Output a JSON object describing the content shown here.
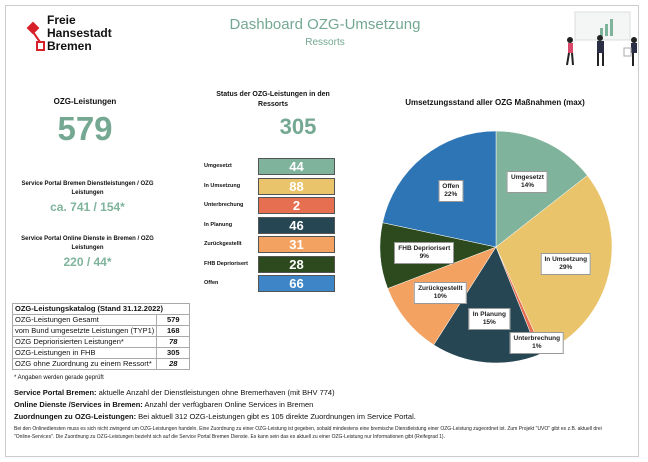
{
  "header": {
    "logo_lines": [
      "Freie",
      "Hansestadt",
      "Bremen"
    ],
    "title": "Dashboard OZG-Umsetzung",
    "subtitle": "Ressorts"
  },
  "left": {
    "ozg_title": "OZG-Leistungen",
    "ozg_value": "579",
    "sp_label": "Service Portal Bremen Dienstleistungen / OZG Leistungen",
    "sp_value": "ca. 741 / 154*",
    "od_label": "Service Portal Online Dienste in Bremen / OZG Leistungen",
    "od_value": "220 / 44*"
  },
  "status": {
    "title": "Status der OZG-Leistungen in den Ressorts",
    "total": "305",
    "items": [
      {
        "label": "Umgesetzt",
        "value": "44",
        "color": "#7fb39c"
      },
      {
        "label": "In Umsetzung",
        "value": "88",
        "color": "#e9c46a"
      },
      {
        "label": "Unterbrechung",
        "value": "2",
        "color": "#e76f51"
      },
      {
        "label": "In Planung",
        "value": "46",
        "color": "#264653"
      },
      {
        "label": "Zurückgestellt",
        "value": "31",
        "color": "#f4a261"
      },
      {
        "label": "FHB Depriorisert",
        "value": "28",
        "color": "#2d4a1e"
      },
      {
        "label": "Offen",
        "value": "66",
        "color": "#3d85c6"
      }
    ]
  },
  "catalog": {
    "title": "OZG-Leistungskatalog (Stand 31.12.2022)",
    "rows": [
      {
        "label": "OZG-Leistungen Gesamt",
        "value": "579"
      },
      {
        "label": "vom Bund umgesetzte Leistungen (TYP1)",
        "value": "168"
      },
      {
        "label": "OZG Depriorisierten Leistungen*",
        "value": "78"
      },
      {
        "label": "OZG-Leistungen in FHB",
        "value": "305"
      },
      {
        "label": "OZG ohne Zuordnung zu einem Ressort*",
        "value": "28"
      }
    ],
    "note": "* Angaben werden gerade geprüft"
  },
  "descriptions": [
    {
      "term": "Service Portal Bremen:",
      "text": " aktuelle Anzahl der Dienstleistungen ohne Bremerhaven (mit BHV 774)"
    },
    {
      "term": "Online Dienste /Services in Bremen:",
      "text": " Anzahl der verfügbaren Online Services in Bremen"
    },
    {
      "term": "Zuordnungen zu OZG-Leistungen:",
      "text": " Bei aktuell 312 OZG-Leistungen gibt es 105 direkte Zuordnungen im Service Portal."
    }
  ],
  "fine_print": "Bei den Onlinediensten muss es sich nicht zwingend um OZG-Leistungen handeln. Eine Zuordnung zu einer OZG-Leistung ist gegeben, sobald mindestens eine bremische Dienstleistung einer OZG-Leistung zugeordnet ist. Zum Projekt \"UVO\" gibt es z.B. aktuell drei \"Online-Services\". Die Zuordnung zu OZG-Leistungen bezieht sich auf die Service Portal Bremen Dienste. Es kann sein das es aktuell zu einer OZG-Leistung nur Informationen gibt (Reifegrad 1).",
  "chart_data": {
    "type": "pie",
    "title": "Umsetzungsstand aller OZG Maßnahmen (max)",
    "start": "12 o'clock, clockwise",
    "slices": [
      {
        "label": "Umgesetzt",
        "value": 44,
        "percent": "14%",
        "color": "#7fb39c"
      },
      {
        "label": "In Umsetzung",
        "value": 88,
        "percent": "29%",
        "color": "#e9c46a"
      },
      {
        "label": "Unterbrechung",
        "value": 2,
        "percent": "1%",
        "color": "#e76f51"
      },
      {
        "label": "In Planung",
        "value": 46,
        "percent": "15%",
        "color": "#264653"
      },
      {
        "label": "Zurückgestellt",
        "value": 31,
        "percent": "10%",
        "color": "#f4a261"
      },
      {
        "label": "FHB Depriorisert",
        "value": 28,
        "percent": "9%",
        "color": "#2d4a1e"
      },
      {
        "label": "Offen",
        "value": 66,
        "percent": "22%",
        "color": "#2e75b6"
      }
    ]
  }
}
